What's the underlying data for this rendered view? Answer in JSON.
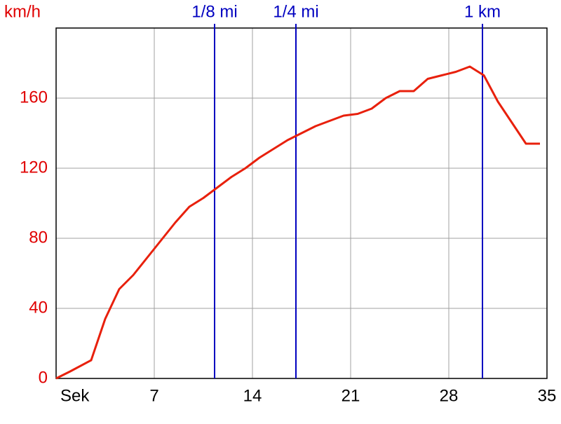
{
  "chart_data": {
    "type": "line",
    "y_label": "km/h",
    "x": [
      0,
      1,
      2.5,
      3.5,
      4.5,
      5.5,
      6.5,
      7.5,
      8.5,
      9.5,
      10.5,
      11.5,
      12.5,
      13.5,
      14.5,
      15.5,
      16.5,
      17.5,
      18.5,
      19.5,
      20.5,
      21.5,
      22.5,
      23.5,
      24.5,
      25.5,
      26.5,
      27.5,
      28.5,
      29.5,
      30.5,
      31.5,
      32.5,
      33.5,
      34.5
    ],
    "series": [
      {
        "color": "#e8200c",
        "values": [
          0,
          4,
          10.4,
          34,
          51,
          59,
          69,
          79,
          89,
          98,
          103,
          109,
          115,
          120,
          126,
          131,
          136,
          140,
          144,
          147,
          150,
          151,
          154,
          160,
          164,
          164,
          171,
          173,
          175,
          178,
          173,
          158,
          146,
          134,
          134
        ]
      }
    ],
    "xlim": [
      0,
      35
    ],
    "xticks": [
      {
        "value": 0,
        "label": "Sek"
      },
      7,
      14,
      21,
      28,
      35
    ],
    "ylim": [
      0,
      200
    ],
    "yticks": [
      0,
      40,
      80,
      120,
      160
    ],
    "grid": true,
    "markers": [
      {
        "label": "1/8 mi",
        "x": 11.3
      },
      {
        "label": "1/4 mi",
        "x": 17.1
      },
      {
        "label": "1 km",
        "x": 30.4
      }
    ],
    "marker_color": "#0000c0",
    "ytick_color": "#e00000"
  }
}
